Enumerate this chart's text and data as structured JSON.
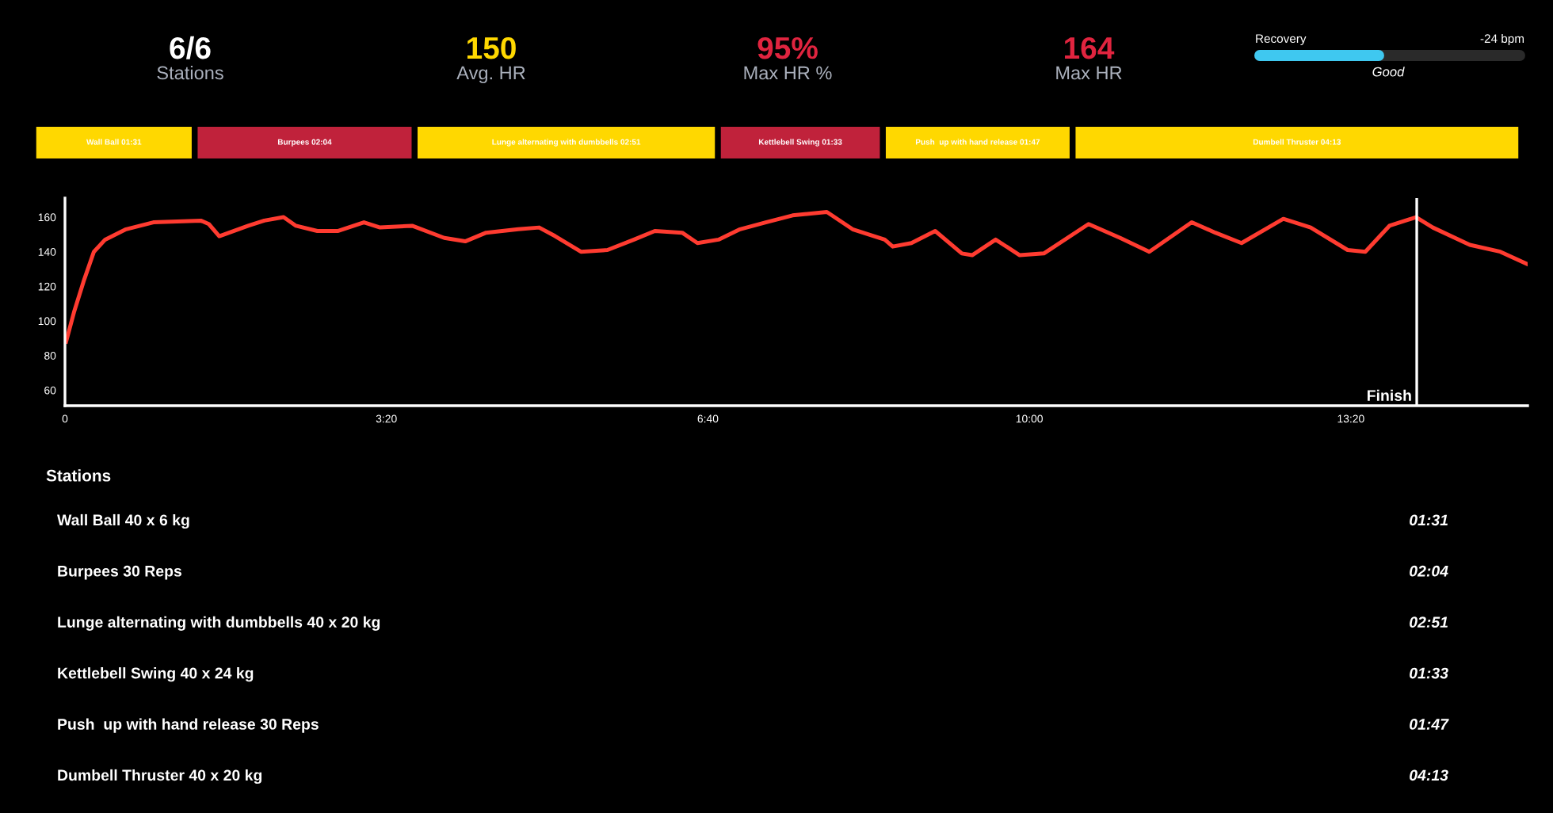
{
  "chart_data": [
    {
      "type": "other",
      "categories": [
        "Stations",
        "Avg. HR",
        "Max HR %",
        "Max HR"
      ],
      "value_labels": [
        "6/6",
        "150",
        "95%",
        "164"
      ],
      "colors": [
        "#ffffff",
        "#ffd800",
        "#e0243f",
        "#e0243f"
      ],
      "annotations": [
        "Recovery",
        "-24 bpm",
        "Good"
      ]
    },
    {
      "type": "other",
      "categories": [
        "Wall Ball 01:31",
        "Burpees 02:04",
        "Lunge alternating with dumbbells 02:51",
        "Kettlebell Swing 01:33",
        "Push  up with hand release 01:47",
        "Dumbell Thruster 04:13"
      ],
      "colors": [
        "#ffd800",
        "#c0223b",
        "#ffd800",
        "#c0223b",
        "#ffd800",
        "#ffd800"
      ]
    },
    {
      "type": "line",
      "color": "#ff3b30",
      "xlim": [
        0,
        910
      ],
      "ylim": [
        51,
        171
      ],
      "xticks": [
        {
          "value": 0,
          "label": "0"
        },
        {
          "value": 200,
          "label": "3:20"
        },
        {
          "value": 400,
          "label": "6:40"
        },
        {
          "value": 600,
          "label": "10:00"
        },
        {
          "value": 800,
          "label": "13:20"
        }
      ],
      "yticks": [
        60,
        80,
        100,
        120,
        140,
        160
      ],
      "x": [
        0.7,
        5.6,
        12,
        18,
        25,
        38,
        55,
        84.5,
        89.5,
        96,
        114,
        124,
        136,
        143.7,
        157,
        170,
        186,
        196,
        216,
        236,
        249,
        262,
        282,
        295,
        305,
        321,
        337.5,
        354,
        367,
        384,
        393.5,
        406.6,
        420,
        436,
        452.7,
        474,
        490,
        510,
        515,
        526.6,
        541.4,
        558,
        564.4,
        579,
        594,
        609,
        636.8,
        656.5,
        674.6,
        701,
        715.7,
        732,
        758,
        775,
        798,
        809,
        824,
        840.6,
        851,
        874,
        893,
        909.5
      ],
      "values": [
        88,
        105,
        124,
        140,
        147,
        153,
        157,
        158,
        156,
        149,
        155,
        158,
        160,
        155,
        152,
        152,
        157,
        154,
        155,
        148,
        146,
        151,
        153,
        154,
        149,
        140,
        141,
        147,
        152,
        151,
        145,
        147,
        153,
        157,
        161,
        163,
        153,
        147,
        143,
        145,
        152,
        139,
        138,
        147,
        138,
        139,
        156,
        148,
        140,
        157,
        151,
        145,
        159,
        154,
        141,
        140,
        155,
        160,
        154,
        144,
        140,
        133
      ],
      "ref_lines": [
        {
          "axis": "x",
          "value": 841,
          "label": "Finish",
          "color": "#ffffff"
        }
      ]
    },
    {
      "type": "other",
      "title": "Stations",
      "categories": [
        "Wall Ball 40 x 6 kg",
        "Burpees 30 Reps",
        "Lunge alternating with dumbbells 40 x 20 kg",
        "Kettlebell Swing 40 x 24 kg",
        "Push  up with hand release 30 Reps",
        "Dumbell Thruster 40 x 20 kg"
      ],
      "value_labels": [
        "01:31",
        "02:04",
        "02:51",
        "01:33",
        "01:47",
        "04:13"
      ]
    }
  ]
}
